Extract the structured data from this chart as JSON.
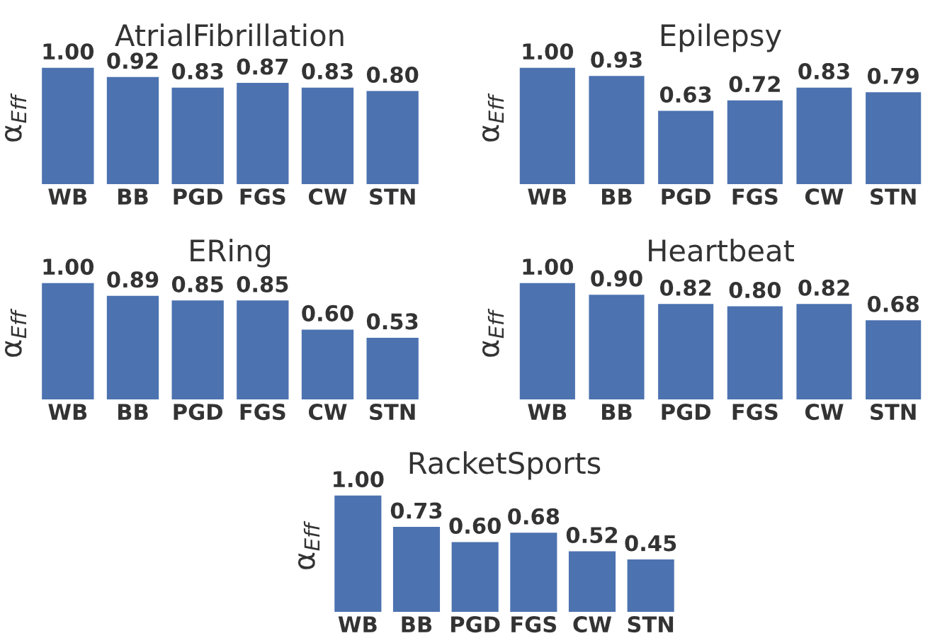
{
  "chart_data": [
    {
      "type": "bar",
      "title": "AtrialFibrillation",
      "ylabel": "α$_{Eff}$",
      "categories": [
        "WB",
        "BB",
        "PGD",
        "FGS",
        "CW",
        "STN"
      ],
      "values": [
        1.0,
        0.92,
        0.83,
        0.87,
        0.83,
        0.8
      ],
      "value_labels": [
        "1.00",
        "0.92",
        "0.83",
        "0.87",
        "0.83",
        "0.80"
      ],
      "color": "#4c72b0"
    },
    {
      "type": "bar",
      "title": "Epilepsy",
      "ylabel": "α$_{Eff}$",
      "categories": [
        "WB",
        "BB",
        "PGD",
        "FGS",
        "CW",
        "STN"
      ],
      "values": [
        1.0,
        0.93,
        0.63,
        0.72,
        0.83,
        0.79
      ],
      "value_labels": [
        "1.00",
        "0.93",
        "0.63",
        "0.72",
        "0.83",
        "0.79"
      ],
      "color": "#4c72b0"
    },
    {
      "type": "bar",
      "title": "ERing",
      "ylabel": "α$_{Eff}$",
      "categories": [
        "WB",
        "BB",
        "PGD",
        "FGS",
        "CW",
        "STN"
      ],
      "values": [
        1.0,
        0.89,
        0.85,
        0.85,
        0.6,
        0.53
      ],
      "value_labels": [
        "1.00",
        "0.89",
        "0.85",
        "0.85",
        "0.60",
        "0.53"
      ],
      "color": "#4c72b0"
    },
    {
      "type": "bar",
      "title": "Heartbeat",
      "ylabel": "α$_{Eff}$",
      "categories": [
        "WB",
        "BB",
        "PGD",
        "FGS",
        "CW",
        "STN"
      ],
      "values": [
        1.0,
        0.9,
        0.82,
        0.8,
        0.82,
        0.68
      ],
      "value_labels": [
        "1.00",
        "0.90",
        "0.82",
        "0.80",
        "0.82",
        "0.68"
      ],
      "color": "#4c72b0"
    },
    {
      "type": "bar",
      "title": "RacketSports",
      "ylabel": "α$_{Eff}$",
      "categories": [
        "WB",
        "BB",
        "PGD",
        "FGS",
        "CW",
        "STN"
      ],
      "values": [
        1.0,
        0.73,
        0.6,
        0.68,
        0.52,
        0.45
      ],
      "value_labels": [
        "1.00",
        "0.73",
        "0.60",
        "0.68",
        "0.52",
        "0.45"
      ],
      "color": "#4c72b0"
    }
  ]
}
